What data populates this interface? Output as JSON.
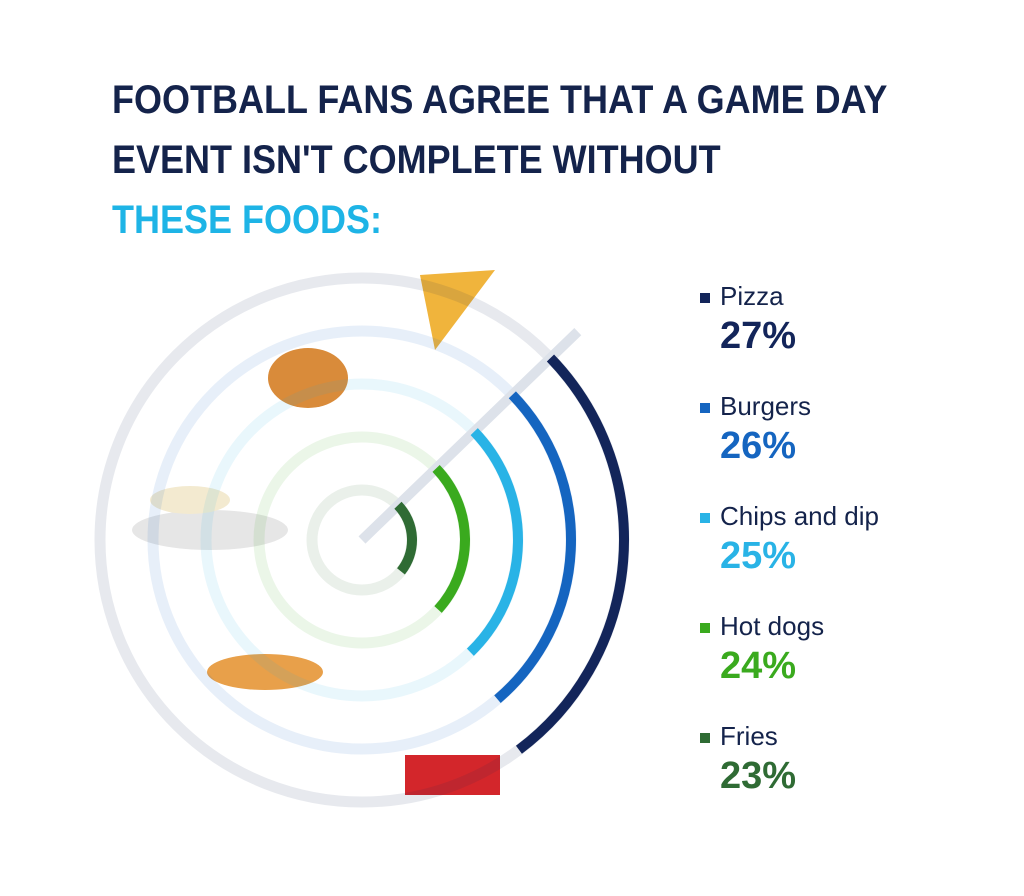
{
  "chart_data": {
    "type": "radial",
    "title": "FOOTBALL FANS AGREE THAT A GAME DAY EVENT ISN'T COMPLETE WITHOUT",
    "title_highlight": "THESE FOODS:",
    "categories": [
      "Pizza",
      "Burgers",
      "Chips and dip",
      "Hot dogs",
      "Fries"
    ],
    "values": [
      27,
      26,
      25,
      24,
      23
    ],
    "value_labels": [
      "27%",
      "26%",
      "25%",
      "24%",
      "23%"
    ],
    "colors": [
      "#13255a",
      "#1565c0",
      "#29b3e6",
      "#3aaa1e",
      "#2f6b34"
    ],
    "ylim": [
      0,
      100
    ]
  }
}
